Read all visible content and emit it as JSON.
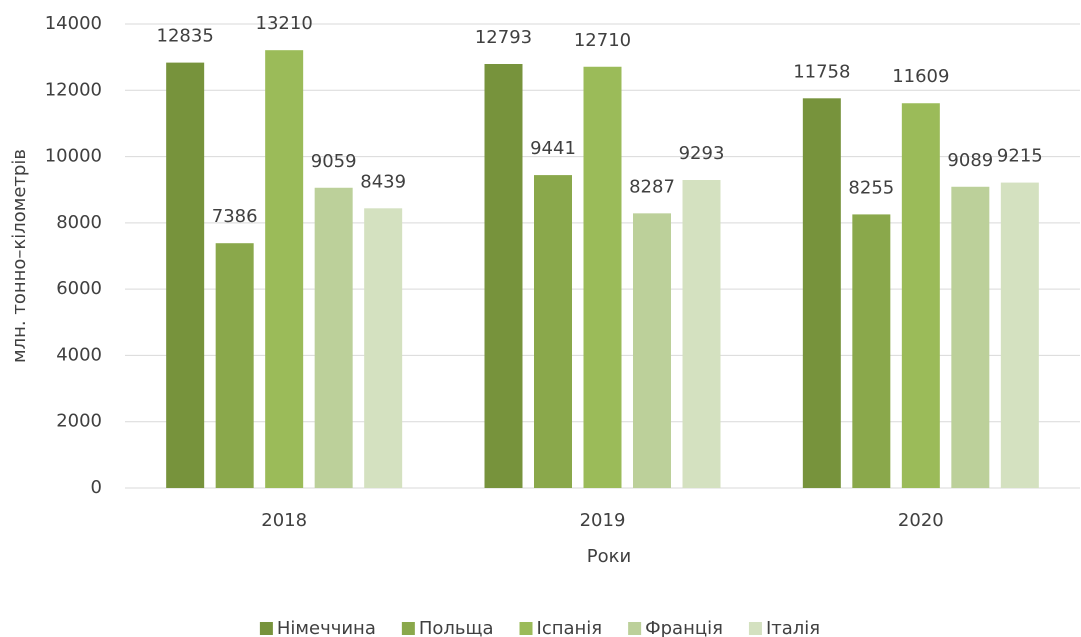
{
  "chart_data": {
    "type": "bar",
    "x_label": "Роки",
    "y_label": "млн. тонно–кілометрів",
    "categories": [
      "2018",
      "2019",
      "2020"
    ],
    "series": [
      {
        "name": "Німеччина",
        "color": "#77933c",
        "values": [
          12835,
          12793,
          11758
        ]
      },
      {
        "name": "Польща",
        "color": "#8aa84b",
        "values": [
          7386,
          9441,
          8255
        ]
      },
      {
        "name": "Іспанія",
        "color": "#9bbb59",
        "values": [
          13210,
          12710,
          11609
        ]
      },
      {
        "name": "Франція",
        "color": "#bcd09a",
        "values": [
          9059,
          8287,
          9089
        ]
      },
      {
        "name": "Італія",
        "color": "#d4e1c0",
        "values": [
          8439,
          9293,
          9215
        ]
      }
    ],
    "ylim": [
      0,
      14000
    ],
    "yticks": [
      0,
      2000,
      4000,
      6000,
      8000,
      10000,
      12000,
      14000
    ],
    "grid": true,
    "legend": "bottom"
  }
}
